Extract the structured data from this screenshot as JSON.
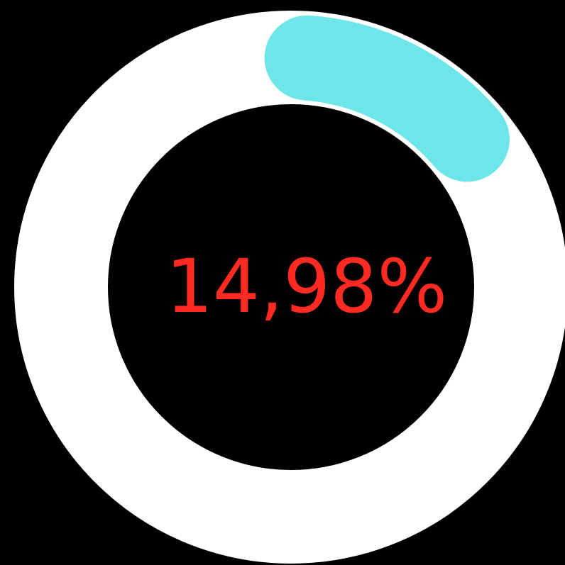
{
  "progress": {
    "label": "14,98%",
    "value_percent": 14.98,
    "start_angle_deg": 0,
    "direction": "clockwise"
  },
  "colors": {
    "background": "#000000",
    "track": "#ffffff",
    "progress_arc": "#6ce6e8",
    "label_text": "#ff2a22",
    "inner_disc": "#000000"
  }
}
